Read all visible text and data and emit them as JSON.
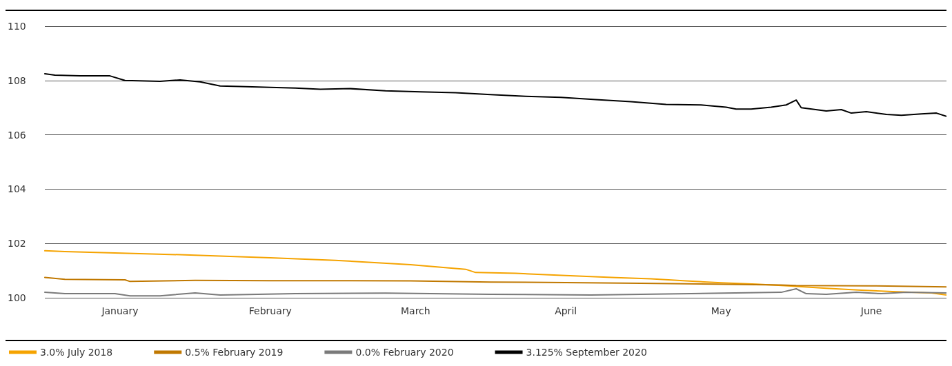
{
  "chart_data": {
    "type": "line",
    "xlim": [
      "--01-01",
      "--06-30"
    ],
    "xticks": [
      {
        "value": "--01-16",
        "label": "January"
      },
      {
        "value": "--02-15",
        "label": "February"
      },
      {
        "value": "--03-16",
        "label": "March"
      },
      {
        "value": "--04-15",
        "label": "April"
      },
      {
        "value": "--05-16",
        "label": "May"
      },
      {
        "value": "--06-15",
        "label": "June"
      }
    ],
    "ylim": [
      100,
      110
    ],
    "yticks": [
      100,
      102,
      104,
      106,
      108,
      110
    ],
    "grid": "y",
    "legend": "bottom left",
    "marker": "none",
    "line_style": "solid",
    "series": [
      {
        "name": "3.0% July 2018",
        "color": "#f5a300",
        "x": [
          "--01-01",
          "--01-05",
          "--01-15",
          "--01-31",
          "--02-15",
          "--02-28",
          "--03-15",
          "--03-26",
          "--03-28",
          "--04-05",
          "--04-15",
          "--04-25",
          "--05-02",
          "--05-09",
          "--05-16",
          "--05-23",
          "--05-30",
          "--06-06",
          "--06-13",
          "--06-20",
          "--06-27",
          "--06-30"
        ],
        "values": [
          101.73,
          101.7,
          101.65,
          101.57,
          101.47,
          101.38,
          101.22,
          101.05,
          100.93,
          100.9,
          100.82,
          100.74,
          100.7,
          100.62,
          100.55,
          100.5,
          100.43,
          100.35,
          100.28,
          100.22,
          100.18,
          100.1
        ]
      },
      {
        "name": "0.5% February 2019",
        "color": "#c07800",
        "x": [
          "--01-01",
          "--01-05",
          "--01-17",
          "--01-18",
          "--01-31",
          "--02-15",
          "--02-28",
          "--03-15",
          "--03-31",
          "--04-15",
          "--04-30",
          "--05-15",
          "--05-28",
          "--05-31",
          "--06-15",
          "--06-30"
        ],
        "values": [
          100.75,
          100.68,
          100.66,
          100.6,
          100.64,
          100.63,
          100.63,
          100.62,
          100.58,
          100.56,
          100.53,
          100.5,
          100.47,
          100.45,
          100.44,
          100.4
        ]
      },
      {
        "name": "0.0% February 2020",
        "color": "#7a7a7a",
        "x": [
          "--01-01",
          "--01-05",
          "--01-15",
          "--01-18",
          "--01-24",
          "--01-31",
          "--02-05",
          "--02-20",
          "--03-10",
          "--03-31",
          "--04-20",
          "--05-10",
          "--05-28",
          "--05-31",
          "--06-02",
          "--06-06",
          "--06-12",
          "--06-17",
          "--06-22",
          "--06-30"
        ],
        "values": [
          100.2,
          100.15,
          100.15,
          100.07,
          100.07,
          100.18,
          100.1,
          100.15,
          100.17,
          100.13,
          100.1,
          100.15,
          100.2,
          100.33,
          100.15,
          100.13,
          100.2,
          100.15,
          100.2,
          100.18
        ]
      },
      {
        "name": "3.125% September 2020",
        "color": "#000000",
        "x": [
          "--01-01",
          "--01-03",
          "--01-08",
          "--01-14",
          "--01-17",
          "--01-24",
          "--01-28",
          "--02-01",
          "--02-05",
          "--02-09",
          "--02-15",
          "--02-20",
          "--02-25",
          "--03-03",
          "--03-10",
          "--03-17",
          "--03-24",
          "--03-31",
          "--04-07",
          "--04-14",
          "--04-21",
          "--04-28",
          "--05-05",
          "--05-12",
          "--05-17",
          "--05-19",
          "--05-22",
          "--05-26",
          "--05-29",
          "--05-31",
          "--06-01",
          "--06-06",
          "--06-09",
          "--06-11",
          "--06-14",
          "--06-18",
          "--06-21",
          "--06-25",
          "--06-28",
          "--06-30"
        ],
        "values": [
          108.25,
          108.2,
          108.17,
          108.17,
          108.0,
          107.97,
          108.02,
          107.95,
          107.8,
          107.78,
          107.75,
          107.72,
          107.68,
          107.7,
          107.62,
          107.58,
          107.55,
          107.48,
          107.42,
          107.38,
          107.3,
          107.22,
          107.12,
          107.1,
          107.02,
          106.95,
          106.95,
          107.02,
          107.1,
          107.28,
          107.0,
          106.88,
          106.93,
          106.8,
          106.85,
          106.75,
          106.72,
          106.77,
          106.8,
          106.68
        ]
      }
    ]
  }
}
